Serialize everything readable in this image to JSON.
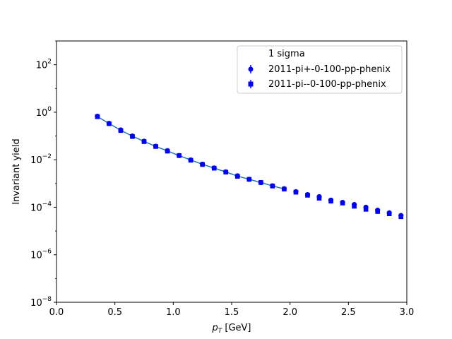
{
  "chart_data": {
    "type": "scatter",
    "xlabel_main": "p",
    "xlabel_sub": "T",
    "xlabel_unit": " [GeV]",
    "ylabel": "Invariant yield",
    "yscale": "log",
    "xlim": [
      0.0,
      3.0
    ],
    "ylim": [
      1e-08,
      1000
    ],
    "x_ticks": [
      "0.0",
      "0.5",
      "1.0",
      "1.5",
      "2.0",
      "2.5",
      "3.0"
    ],
    "y_ticks": [
      {
        "base": "10",
        "exp": "−8",
        "value": 1e-08
      },
      {
        "base": "10",
        "exp": "−6",
        "value": 1e-06
      },
      {
        "base": "10",
        "exp": "−4",
        "value": 0.0001
      },
      {
        "base": "10",
        "exp": "−2",
        "value": 0.01
      },
      {
        "base": "10",
        "exp": "0",
        "value": 1
      },
      {
        "base": "10",
        "exp": "2",
        "value": 100
      }
    ],
    "legend": {
      "title": "1 sigma",
      "position": "upper right"
    },
    "series": [
      {
        "name": "2011-pi+-0-100-pp-phenix",
        "marker": "circle",
        "color": "#0000ff",
        "x": [
          0.35,
          0.45,
          0.55,
          0.65,
          0.75,
          0.85,
          0.95,
          1.05,
          1.15,
          1.25,
          1.35,
          1.45,
          1.55,
          1.65,
          1.75,
          1.85,
          1.95,
          2.05,
          2.15,
          2.25,
          2.35,
          2.45,
          2.55,
          2.65,
          2.75,
          2.85,
          2.95
        ],
        "y": [
          0.68,
          0.34,
          0.18,
          0.1,
          0.06,
          0.037,
          0.024,
          0.015,
          0.0098,
          0.0065,
          0.0045,
          0.0031,
          0.0021,
          0.0015,
          0.0011,
          0.0008,
          0.0006,
          0.00045,
          0.00034,
          0.00028,
          0.0002,
          0.00016,
          0.00013,
          0.0001,
          7.5e-05,
          5.8e-05,
          4.5e-05
        ]
      },
      {
        "name": "2011-pi--0-100-pp-phenix",
        "marker": "square",
        "color": "#0000ff",
        "x": [
          0.35,
          0.45,
          0.55,
          0.65,
          0.75,
          0.85,
          0.95,
          1.05,
          1.15,
          1.25,
          1.35,
          1.45,
          1.55,
          1.65,
          1.75,
          1.85,
          1.95,
          2.05,
          2.15,
          2.25,
          2.35,
          2.45,
          2.55,
          2.65,
          2.75,
          2.85,
          2.95
        ],
        "y": [
          0.65,
          0.33,
          0.17,
          0.095,
          0.058,
          0.036,
          0.023,
          0.015,
          0.0095,
          0.0063,
          0.0044,
          0.003,
          0.002,
          0.0015,
          0.0011,
          0.00078,
          0.00058,
          0.00043,
          0.00032,
          0.00024,
          0.00018,
          0.00015,
          0.00011,
          8.2e-05,
          6.6e-05,
          5.3e-05,
          4e-05
        ]
      }
    ],
    "fit_line": {
      "color": "#1f77b4",
      "x": [
        0.35,
        0.45,
        0.55,
        0.65,
        0.75,
        0.85,
        0.95,
        1.05,
        1.15,
        1.25,
        1.35,
        1.45,
        1.55,
        1.65,
        1.75,
        1.85,
        1.95
      ],
      "y": [
        0.66,
        0.335,
        0.175,
        0.098,
        0.059,
        0.0365,
        0.0235,
        0.015,
        0.0097,
        0.0064,
        0.00445,
        0.00305,
        0.00205,
        0.0015,
        0.0011,
        0.00079,
        0.00059
      ]
    }
  }
}
